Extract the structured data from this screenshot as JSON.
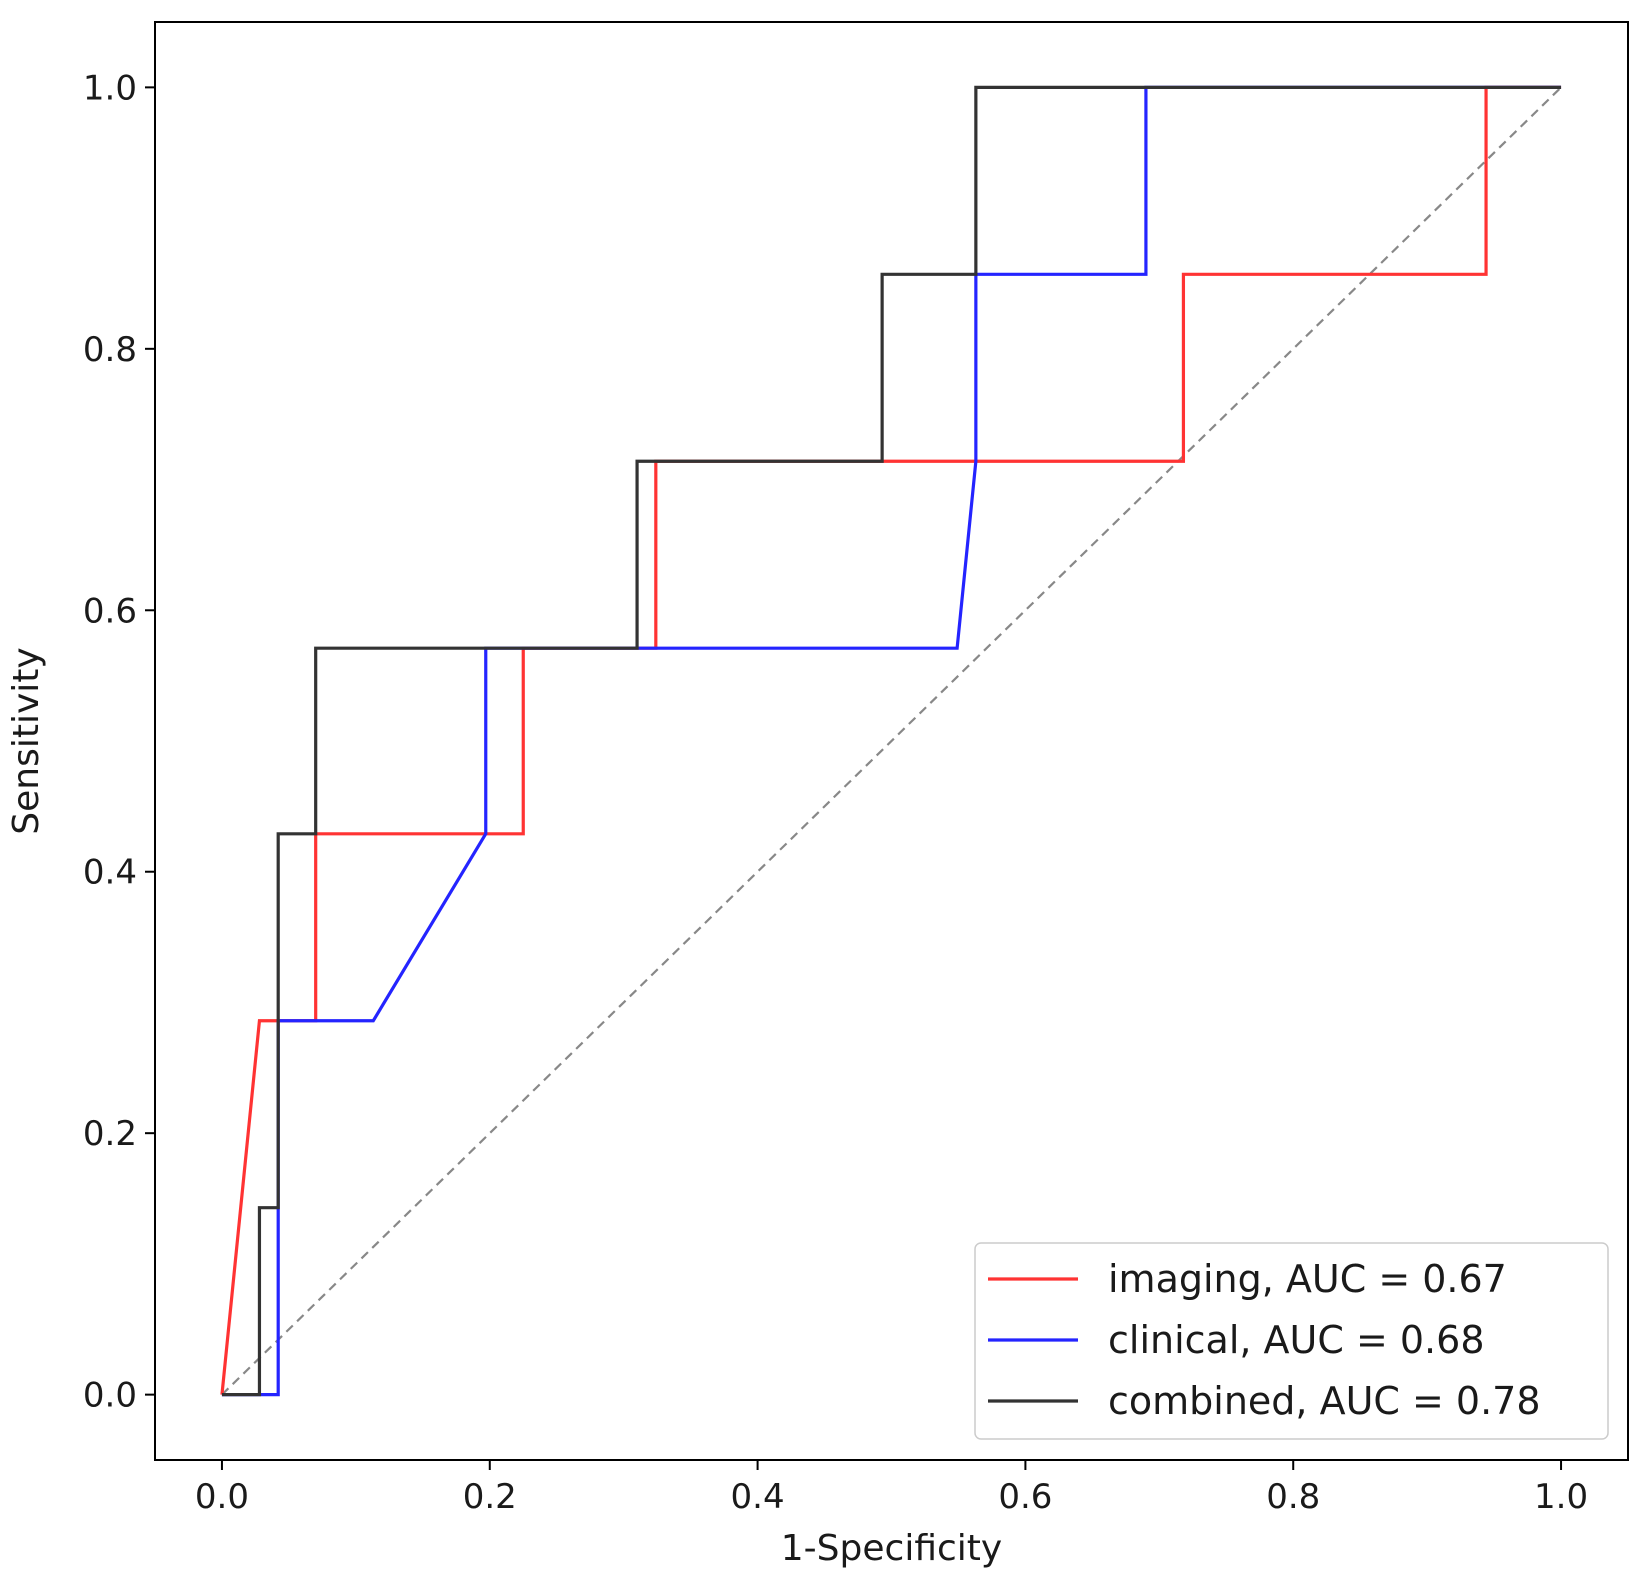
{
  "chart_data": {
    "type": "line",
    "title": "",
    "xlabel": "1-Specificity",
    "ylabel": "Sensitivity",
    "xlim": [
      -0.05,
      1.05
    ],
    "ylim": [
      -0.05,
      1.05
    ],
    "xticks": [
      0.0,
      0.2,
      0.4,
      0.6,
      0.8,
      1.0
    ],
    "yticks": [
      0.0,
      0.2,
      0.4,
      0.6,
      0.8,
      1.0
    ],
    "tick_labels_x": [
      "0.0",
      "0.2",
      "0.4",
      "0.6",
      "0.8",
      "1.0"
    ],
    "tick_labels_y": [
      "0.0",
      "0.2",
      "0.4",
      "0.6",
      "0.8",
      "1.0"
    ],
    "grid": false,
    "legend_position": "lower-right",
    "series": [
      {
        "name": "imaging, AUC = 0.67",
        "color": "#ff3333",
        "x": [
          0.0,
          0.028,
          0.07,
          0.07,
          0.225,
          0.225,
          0.324,
          0.324,
          0.718,
          0.718,
          0.944,
          0.944,
          1.0
        ],
        "y": [
          0.0,
          0.286,
          0.286,
          0.429,
          0.429,
          0.571,
          0.571,
          0.714,
          0.714,
          0.857,
          0.857,
          1.0,
          1.0
        ]
      },
      {
        "name": "clinical, AUC = 0.68",
        "color": "#2424ff",
        "x": [
          0.0,
          0.042,
          0.042,
          0.113,
          0.197,
          0.197,
          0.549,
          0.563,
          0.563,
          0.69,
          0.69,
          1.0
        ],
        "y": [
          0.0,
          0.0,
          0.286,
          0.286,
          0.429,
          0.571,
          0.571,
          0.714,
          0.857,
          0.857,
          1.0,
          1.0
        ]
      },
      {
        "name": "combined, AUC = 0.78",
        "color": "#333333",
        "x": [
          0.0,
          0.028,
          0.028,
          0.042,
          0.042,
          0.07,
          0.07,
          0.31,
          0.31,
          0.493,
          0.493,
          0.563,
          0.563,
          1.0
        ],
        "y": [
          0.0,
          0.0,
          0.143,
          0.143,
          0.429,
          0.429,
          0.571,
          0.571,
          0.714,
          0.714,
          0.857,
          0.857,
          1.0,
          1.0
        ]
      }
    ],
    "reference_line": {
      "name": "chance",
      "color": "#888888",
      "x": [
        0.0,
        1.0
      ],
      "y": [
        0.0,
        1.0
      ],
      "style": "dashed"
    }
  }
}
